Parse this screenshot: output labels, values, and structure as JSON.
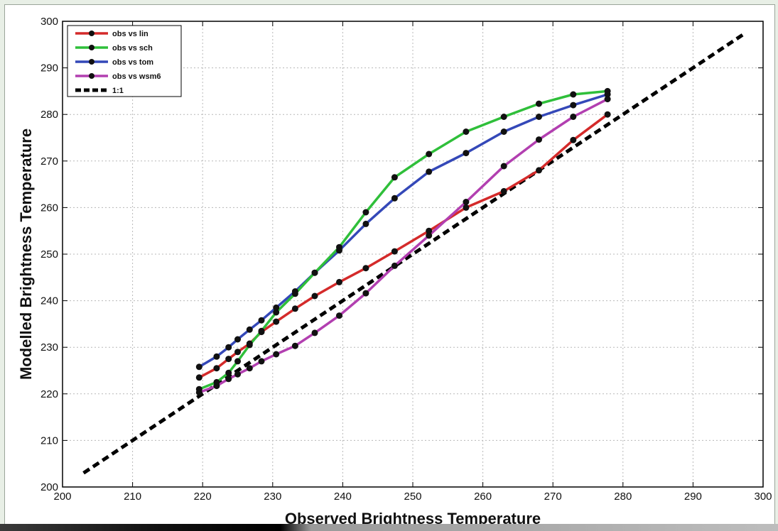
{
  "chart_data": {
    "type": "line",
    "title": "",
    "xlabel": "Observed Brightness Temperature",
    "ylabel": "Modelled Brightness Temperature",
    "xlim": [
      200,
      300
    ],
    "ylim": [
      200,
      300
    ],
    "xticks": [
      200,
      210,
      220,
      230,
      240,
      250,
      260,
      270,
      280,
      290,
      300
    ],
    "yticks": [
      200,
      210,
      220,
      230,
      240,
      250,
      260,
      270,
      280,
      290,
      300
    ],
    "grid": true,
    "legend_position": "top-left",
    "series": [
      {
        "name": "obs vs lin",
        "color": "#d42a2a",
        "x": [
          219.5,
          222,
          223.7,
          225,
          226.7,
          228.4,
          230.5,
          233.2,
          236,
          239.5,
          243.3,
          247.4,
          252.3,
          257.6,
          263,
          268,
          272.9,
          277.8
        ],
        "y": [
          223.5,
          225.5,
          227.5,
          229,
          230.8,
          233.3,
          235.5,
          238.3,
          241,
          244,
          247,
          250.6,
          255,
          260,
          263.5,
          268,
          274.5,
          280
        ]
      },
      {
        "name": "obs vs sch",
        "color": "#2fbf3a",
        "x": [
          219.5,
          222,
          223.7,
          225,
          226.7,
          228.4,
          230.5,
          233.2,
          236,
          239.5,
          243.3,
          247.4,
          252.3,
          257.6,
          263,
          268,
          272.9,
          277.8
        ],
        "y": [
          221,
          222.5,
          224.5,
          227,
          230.5,
          233.5,
          237.5,
          241.5,
          246,
          251.5,
          259,
          266.5,
          271.5,
          276.3,
          279.5,
          282.3,
          284.3,
          285
        ]
      },
      {
        "name": "obs vs tom",
        "color": "#3448b8",
        "x": [
          219.5,
          222,
          223.7,
          225,
          226.7,
          228.4,
          230.5,
          233.2,
          236,
          239.5,
          243.3,
          247.4,
          252.3,
          257.6,
          263,
          268,
          272.9,
          277.8
        ],
        "y": [
          225.8,
          228,
          230,
          231.7,
          233.8,
          235.8,
          238.5,
          242,
          246,
          250.8,
          256.5,
          262,
          267.7,
          271.7,
          276.3,
          279.5,
          282,
          284.3
        ]
      },
      {
        "name": "obs vs wsm6",
        "color": "#b23fb0",
        "x": [
          219.5,
          222,
          223.7,
          225,
          226.7,
          228.4,
          230.5,
          233.2,
          236,
          239.5,
          243.3,
          247.4,
          252.3,
          257.6,
          263,
          268,
          272.9,
          277.8
        ],
        "y": [
          220.3,
          221.7,
          223.2,
          224.2,
          225.5,
          227,
          228.5,
          230.3,
          233.1,
          236.8,
          241.6,
          247.5,
          254,
          261.2,
          268.9,
          274.6,
          279.5,
          283.3
        ]
      },
      {
        "name": "1:1",
        "color": "#000000",
        "dashed": true,
        "markers": false,
        "x": [
          203,
          297.5
        ],
        "y": [
          203,
          297.5
        ]
      }
    ]
  }
}
